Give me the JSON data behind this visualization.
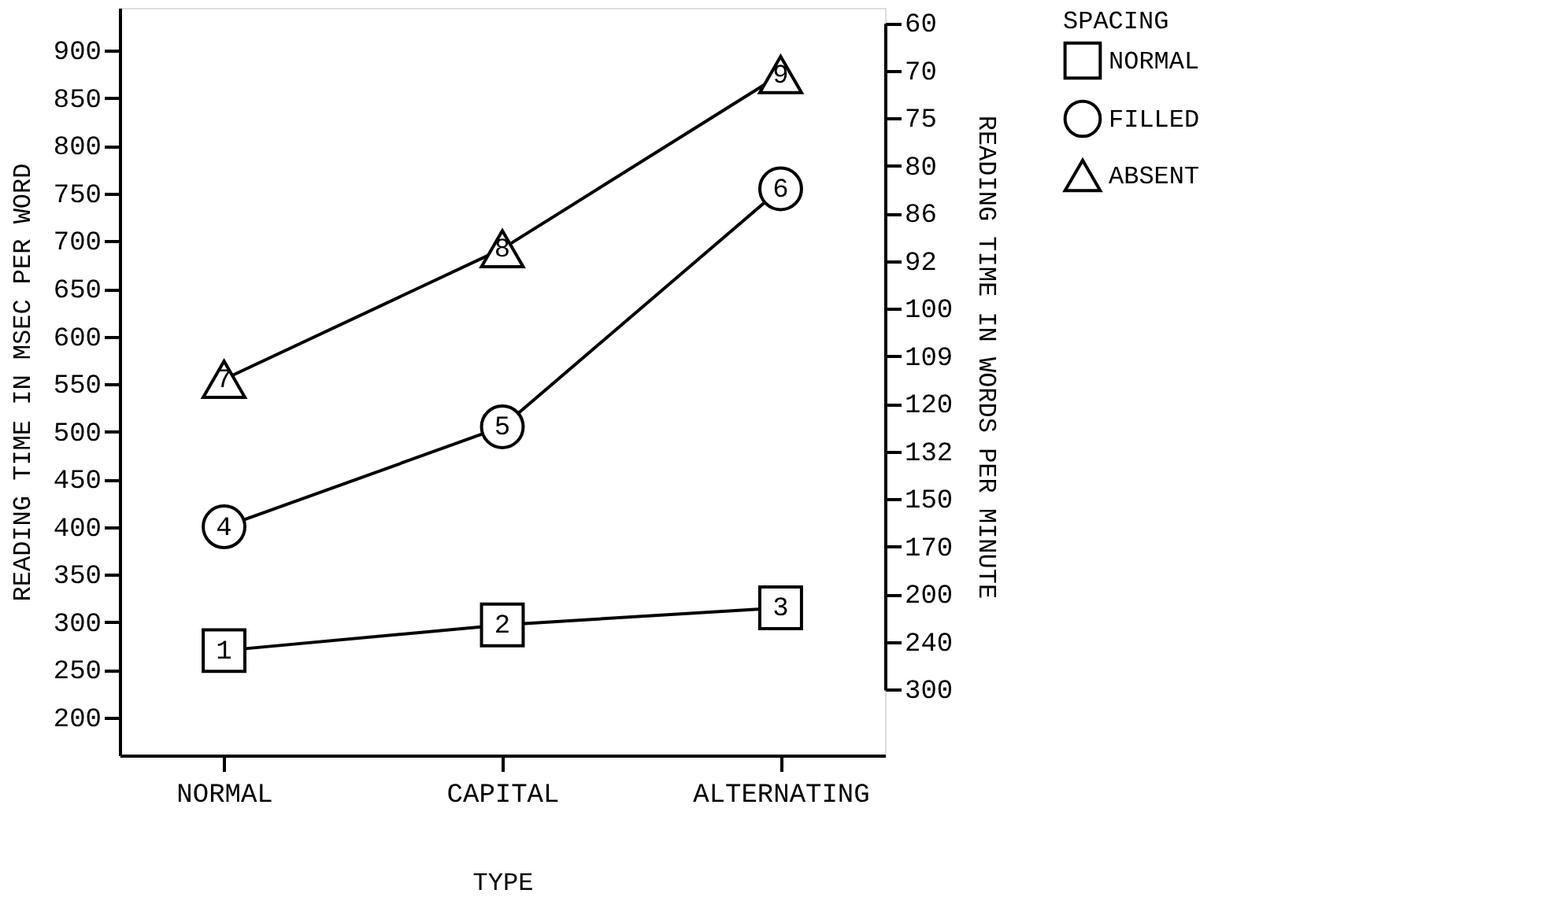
{
  "chart_data": {
    "type": "line",
    "xlabel": "TYPE",
    "ylabel": "READING TIME IN MSEC PER WORD",
    "y2label": "READING TIME IN WORDS PER MINUTE",
    "legend_title": "SPACING",
    "categories": [
      "NORMAL",
      "CAPITAL",
      "ALTERNATING"
    ],
    "series": [
      {
        "name": "NORMAL",
        "color": "#000000",
        "marker": "square",
        "values": [
          270,
          297,
          315
        ]
      },
      {
        "name": "FILLED",
        "color": "#000000",
        "marker": "circle",
        "values": [
          400,
          505,
          755
        ]
      },
      {
        "name": "ABSENT",
        "color": "#000000",
        "marker": "triangle",
        "values": [
          555,
          692,
          875
        ]
      }
    ],
    "annotations": [
      {
        "text": "1",
        "x": "NORMAL",
        "y": 270
      },
      {
        "text": "2",
        "x": "CAPITAL",
        "y": 297
      },
      {
        "text": "3",
        "x": "ALTERNATING",
        "y": 315
      },
      {
        "text": "4",
        "x": "NORMAL",
        "y": 400
      },
      {
        "text": "5",
        "x": "CAPITAL",
        "y": 505
      },
      {
        "text": "6",
        "x": "ALTERNATING",
        "y": 755
      },
      {
        "text": "7",
        "x": "NORMAL",
        "y": 555
      },
      {
        "text": "8",
        "x": "CAPITAL",
        "y": 692
      },
      {
        "text": "9",
        "x": "ALTERNATING",
        "y": 875
      }
    ],
    "ylim": [
      160,
      945
    ],
    "yticks": [
      200,
      250,
      300,
      350,
      400,
      450,
      500,
      550,
      600,
      650,
      700,
      750,
      800,
      850,
      900
    ],
    "y2_categories": [
      "60",
      "70",
      "75",
      "80",
      "86",
      "92",
      "100",
      "109",
      "120",
      "132",
      "150",
      "170",
      "200",
      "240",
      "300"
    ],
    "grid": false,
    "legend": "right",
    "line_style": "solid"
  }
}
